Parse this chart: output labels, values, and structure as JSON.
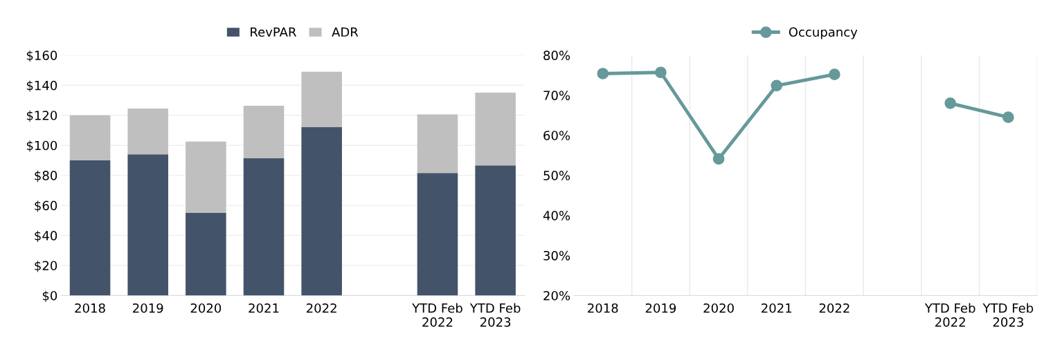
{
  "chart_data": [
    {
      "type": "bar",
      "stacked": true,
      "categories": [
        "2018",
        "2019",
        "2020",
        "2021",
        "2022",
        null,
        "YTD Feb\n2022",
        "YTD Feb\n2023"
      ],
      "series": [
        {
          "name": "RevPAR",
          "color": "#435369",
          "values": [
            90,
            94,
            55,
            91.3,
            112,
            null,
            81.6,
            86.6
          ]
        },
        {
          "name": "ADR",
          "color": "#bfbfbf",
          "values": [
            30,
            30.5,
            47.5,
            35,
            37,
            null,
            39,
            48.5
          ]
        }
      ],
      "ylim": [
        0,
        160
      ],
      "yticks": [
        {
          "value": 0,
          "label": "$0"
        },
        {
          "value": 20,
          "label": "$20"
        },
        {
          "value": 40,
          "label": "$40"
        },
        {
          "value": 60,
          "label": "$60"
        },
        {
          "value": 80,
          "label": "$80"
        },
        {
          "value": 100,
          "label": "$100"
        },
        {
          "value": 120,
          "label": "$120"
        },
        {
          "value": 140,
          "label": "$140"
        },
        {
          "value": 160,
          "label": "$160"
        }
      ],
      "grid": "y",
      "legend": "top"
    },
    {
      "type": "line",
      "categories": [
        "2018",
        "2019",
        "2020",
        "2021",
        "2022",
        null,
        "YTD Feb\n2022",
        "YTD Feb\n2023"
      ],
      "series": [
        {
          "name": "Occupancy",
          "color": "#669999",
          "values": [
            75.4,
            75.7,
            54.1,
            72.4,
            75.2,
            null,
            68.0,
            64.5
          ]
        }
      ],
      "ylim": [
        20,
        80
      ],
      "yticks": [
        {
          "value": 20,
          "label": "20%"
        },
        {
          "value": 30,
          "label": "30%"
        },
        {
          "value": 40,
          "label": "40%"
        },
        {
          "value": 50,
          "label": "50%"
        },
        {
          "value": 60,
          "label": "60%"
        },
        {
          "value": 70,
          "label": "70%"
        },
        {
          "value": 80,
          "label": "80%"
        }
      ],
      "grid": "x",
      "legend": "top",
      "marker": "circle",
      "line_style": "solid"
    }
  ]
}
